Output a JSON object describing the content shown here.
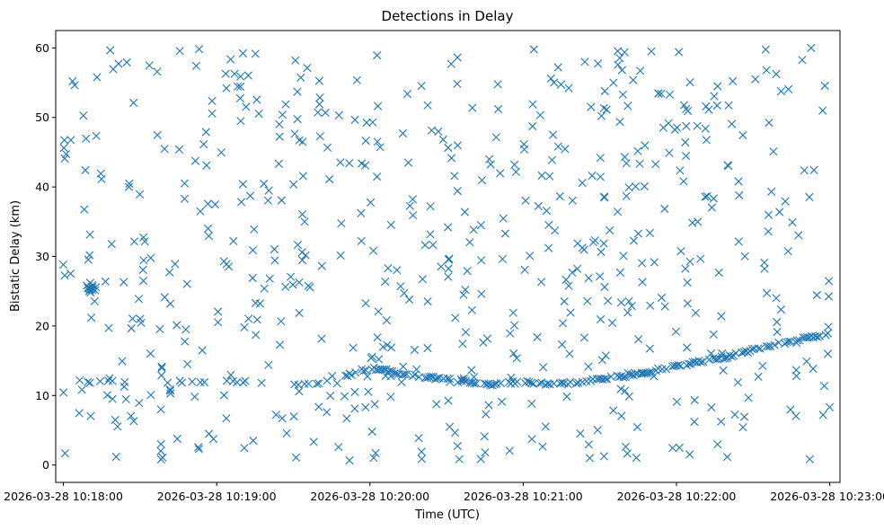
{
  "chart_data": {
    "type": "scatter",
    "title": "Detections in Delay",
    "xlabel": "Time (UTC)",
    "ylabel": "Bistatic Delay (km)",
    "x_tick_labels": [
      "2026-03-28 10:18:00",
      "2026-03-28 10:19:00",
      "2026-03-28 10:20:00",
      "2026-03-28 10:21:00",
      "2026-03-28 10:22:00",
      "2026-03-28 10:23:00"
    ],
    "x_tick_seconds": [
      0,
      60,
      120,
      180,
      240,
      300
    ],
    "y_ticks": [
      0,
      10,
      20,
      30,
      40,
      50,
      60
    ],
    "xlim_seconds": [
      -3,
      304
    ],
    "ylim": [
      -2.5,
      62.5
    ],
    "grid": false,
    "marker": "x",
    "color": "#1f77b4",
    "track": {
      "description": "dense detection track",
      "t_start": 0,
      "t_end": 300,
      "control_points": [
        [
          0,
          12.0
        ],
        [
          60,
          12.0
        ],
        [
          100,
          11.6
        ],
        [
          120,
          14.0
        ],
        [
          135,
          13.0
        ],
        [
          165,
          11.6
        ],
        [
          182,
          12.0
        ],
        [
          190,
          11.6
        ],
        [
          200,
          11.8
        ],
        [
          205,
          12.2
        ],
        [
          220,
          12.8
        ],
        [
          240,
          14.2
        ],
        [
          260,
          15.6
        ],
        [
          275,
          17.0
        ],
        [
          290,
          18.3
        ],
        [
          300,
          18.8
        ]
      ]
    },
    "clutter_count": 620,
    "clutter_delay_range": [
      0.5,
      60
    ],
    "clutter_seed": 7
  }
}
